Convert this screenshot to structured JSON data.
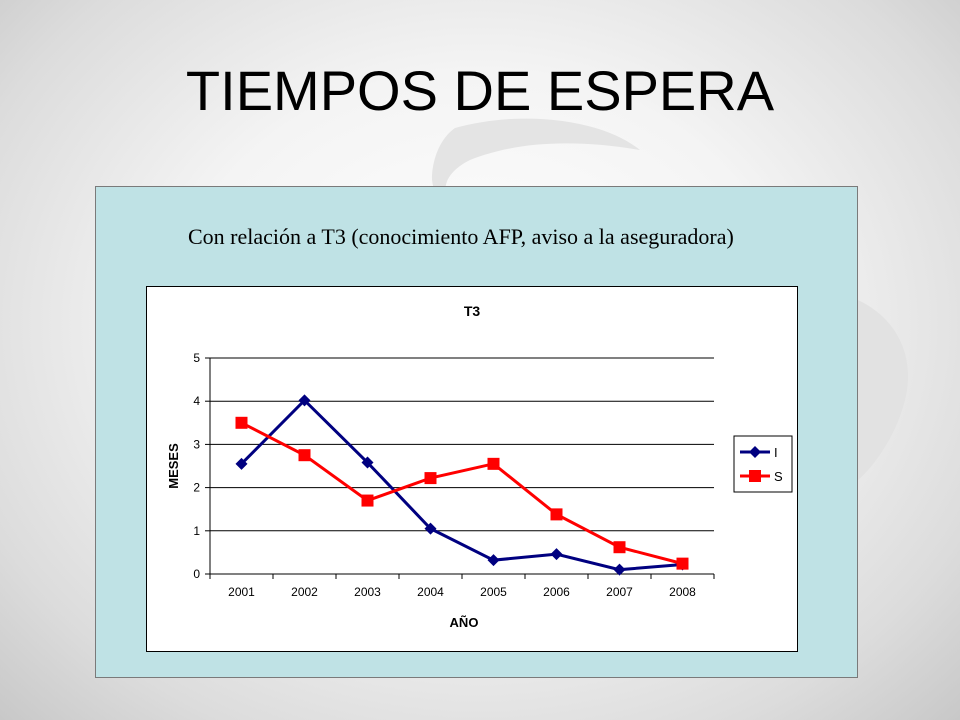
{
  "slide": {
    "title": "TIEMPOS DE ESPERA",
    "caption": "Con relación a T3 (conocimiento AFP, aviso a la aseguradora)"
  },
  "colors": {
    "panel_bg": "#bfe2e5",
    "series_I": "#000080",
    "series_S": "#ff0000"
  },
  "chart_data": {
    "type": "line",
    "title": "T3",
    "xlabel": "AÑO",
    "ylabel": "MESES",
    "categories": [
      "2001",
      "2002",
      "2003",
      "2004",
      "2005",
      "2006",
      "2007",
      "2008"
    ],
    "ylim": [
      0,
      5
    ],
    "yticks": [
      "0",
      "1",
      "2",
      "3",
      "4",
      "5"
    ],
    "grid": true,
    "legend_position": "right",
    "series": [
      {
        "name": "I",
        "color": "#000080",
        "marker": "diamond",
        "values": [
          2.55,
          4.02,
          2.58,
          1.05,
          0.32,
          0.46,
          0.1,
          0.22
        ]
      },
      {
        "name": "S",
        "color": "#ff0000",
        "marker": "square",
        "values": [
          3.5,
          2.75,
          1.7,
          2.22,
          2.55,
          1.38,
          0.62,
          0.24
        ]
      }
    ]
  }
}
